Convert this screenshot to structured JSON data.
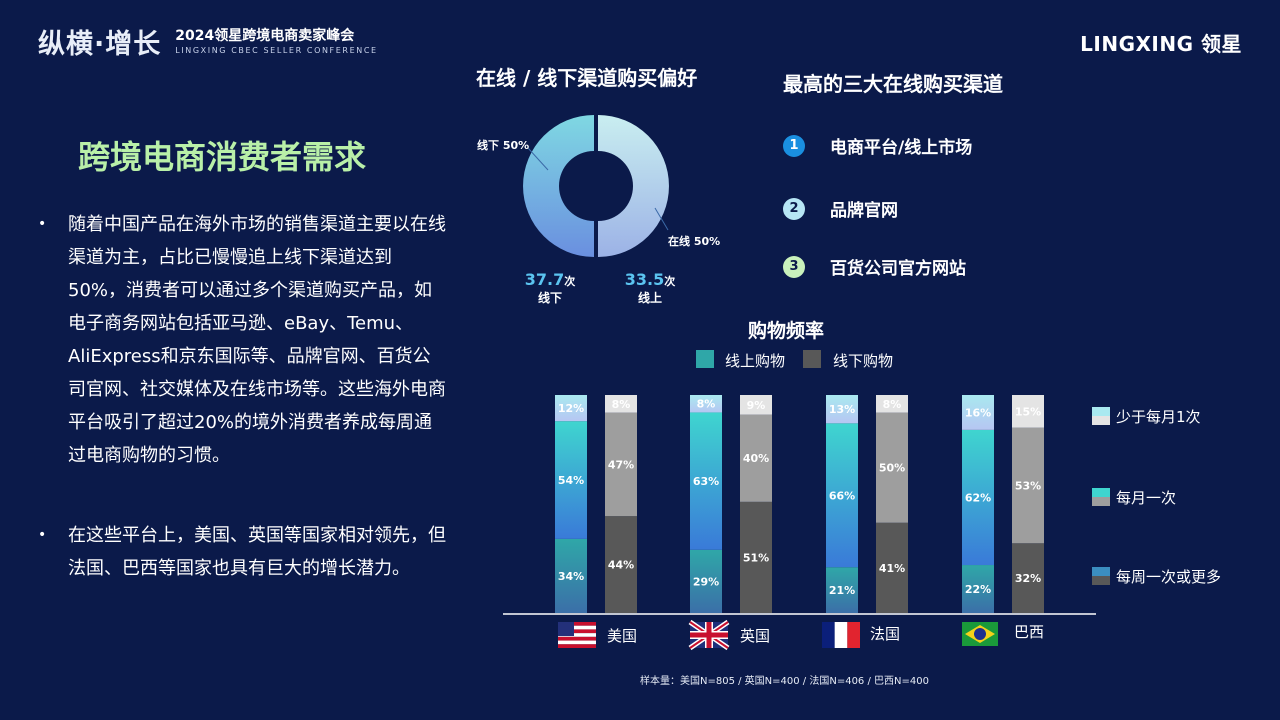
{
  "header": {
    "logo_main": "纵横·增长",
    "event_title": "2024领星跨境电商卖家峰会",
    "event_subtitle": "LINGXING CBEC SELLER CONFERENCE",
    "brand": "LINGXING 领星"
  },
  "left": {
    "title": "跨境电商消费者需求",
    "bullets": [
      "随着中国产品在海外市场的销售渠道主要以在线渠道为主，占比已慢慢追上线下渠道达到50%，消费者可以通过多个渠道购买产品，如电子商务网站包括亚马逊、eBay、Temu、AliExpress和京东国际等、品牌官网、百货公司官网、社交媒体及在线市场等。这些海外电商平台吸引了超过20%的境外消费者养成每周通过电商购物的习惯。",
      "在这些平台上，美国、英国等国家相对领先，但法国、巴西等国家也具有巨大的增长潜力。"
    ]
  },
  "donut": {
    "title": "在线 / 线下渠道购买偏好",
    "offline_label": "线下 50%",
    "online_label": "在线 50%",
    "offline_times": "37.7",
    "online_times": "33.5",
    "times_unit": "次",
    "offline_caption": "线下",
    "online_caption": "线上"
  },
  "top_channels": {
    "title": "最高的三大在线购买渠道",
    "items": [
      {
        "rank": "1",
        "label": "电商平台/线上市场",
        "color": "#1a8fe0"
      },
      {
        "rank": "2",
        "label": "品牌官网",
        "color": "#b7e6f5"
      },
      {
        "rank": "3",
        "label": "百货公司官方网站",
        "color": "#c9f1bc"
      }
    ]
  },
  "chart_data": [
    {
      "type": "pie",
      "values": [
        50,
        50
      ],
      "categories": [
        "线下",
        "在线"
      ],
      "labels": [
        "线下 50%",
        "在线 50%"
      ]
    },
    {
      "type": "bar",
      "stacked": true,
      "title": "购物频率",
      "groups": [
        "线上购物",
        "线下购物"
      ],
      "categories": [
        "美国",
        "英国",
        "法国",
        "巴西"
      ],
      "segments": [
        "每周一次或更多",
        "每月一次",
        "少于每月1次"
      ],
      "online": [
        {
          "weekly": 34,
          "monthly": 54,
          "less": 12
        },
        {
          "weekly": 29,
          "monthly": 63,
          "less": 8
        },
        {
          "weekly": 21,
          "monthly": 66,
          "less": 13
        },
        {
          "weekly": 22,
          "monthly": 62,
          "less": 16
        }
      ],
      "offline": [
        {
          "weekly": 44,
          "monthly": 47,
          "less": 8
        },
        {
          "weekly": 51,
          "monthly": 40,
          "less": 9
        },
        {
          "weekly": 41,
          "monthly": 50,
          "less": 8
        },
        {
          "weekly": 32,
          "monthly": 53,
          "less": 15
        }
      ],
      "legend_bottom": [
        "少于每月1次",
        "每月一次",
        "每周一次或更多"
      ],
      "legend_top": [
        "线上购物",
        "线下购物"
      ]
    }
  ],
  "sample_note": "样本量：美国N=805 / 英国N=400 / 法国N=406 / 巴西N=400"
}
